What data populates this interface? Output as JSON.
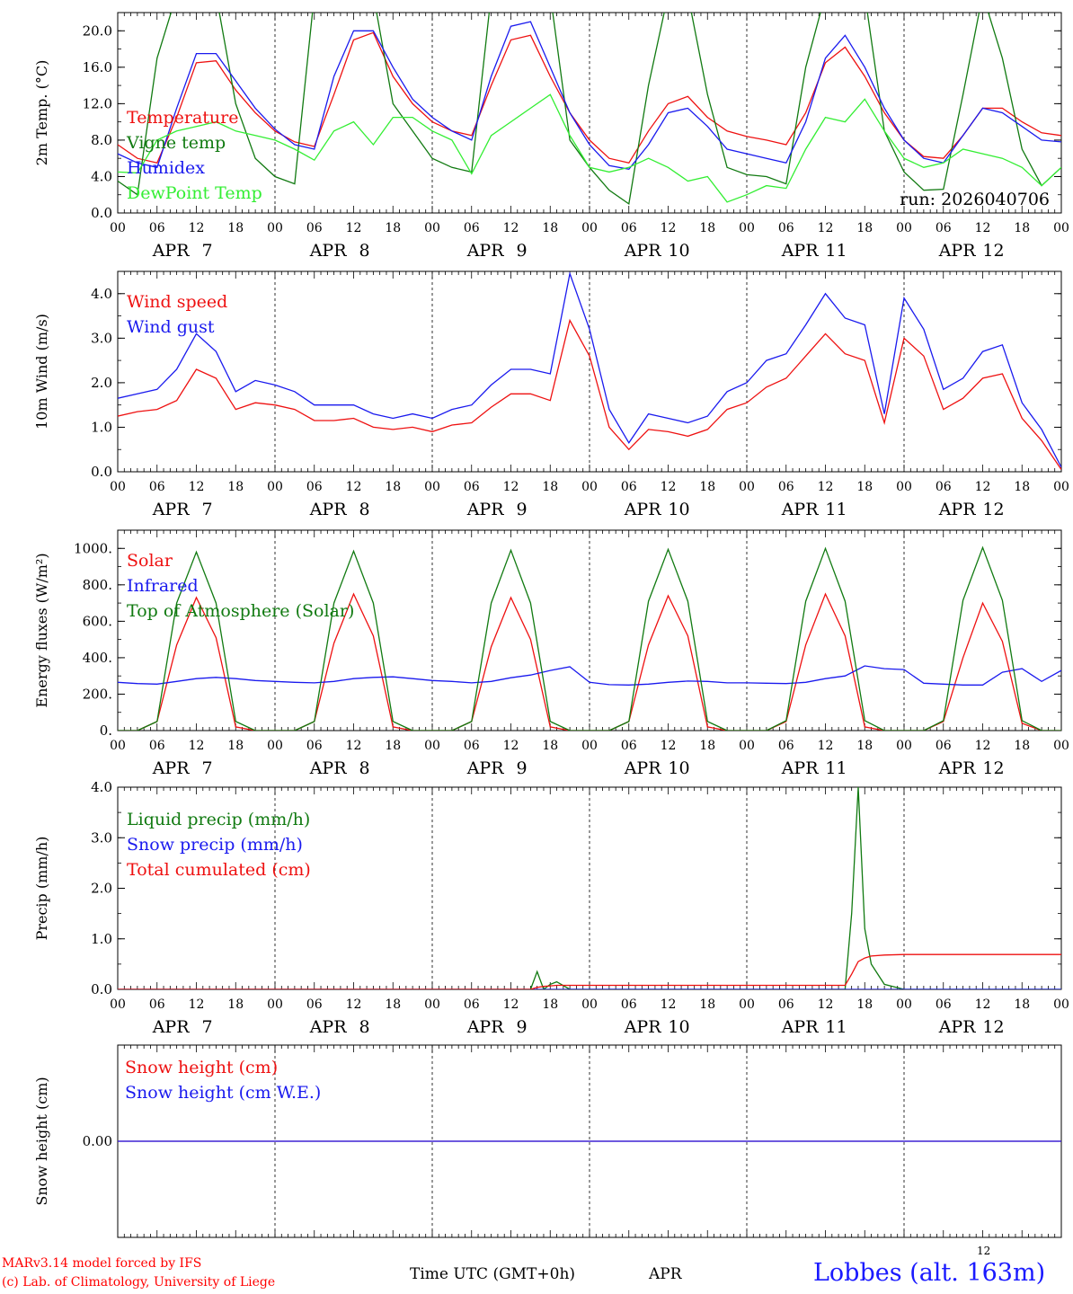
{
  "run_label": "run: 2026040706",
  "time_axis": {
    "hours_per_day": 24,
    "hour_ticks": [
      "00",
      "06",
      "12",
      "18"
    ],
    "final_tick": "00",
    "days": [
      {
        "month": "APR",
        "day": "7"
      },
      {
        "month": "APR",
        "day": "8"
      },
      {
        "month": "APR",
        "day": "9"
      },
      {
        "month": "APR",
        "day": "10"
      },
      {
        "month": "APR",
        "day": "11"
      },
      {
        "month": "APR",
        "day": "12"
      }
    ]
  },
  "footer": {
    "model": "MARv3.14 model forced by IFS",
    "credit": "(c) Lab. of Climatology, University of Liege",
    "time_label": "Time UTC (GMT+0h)",
    "month": "APR",
    "day": "12",
    "station": "Lobbes (alt. 163m)"
  },
  "colors": {
    "red": "#ee1111",
    "green": "#117a11",
    "blue": "#1a1aee",
    "lightgreen": "#33ee33"
  },
  "chart_data": [
    {
      "type": "line",
      "id": "temperature",
      "ylabel": "2m Temp. (°C)",
      "ylim": [
        0,
        22
      ],
      "yticks": [
        0,
        4,
        8,
        12,
        16,
        20
      ],
      "ytick_labels": [
        "0.0",
        "4.0",
        "8.0",
        "12.0",
        "16.0",
        "20.0"
      ],
      "x_hours": [
        0,
        3,
        6,
        9,
        12,
        15,
        18,
        21,
        24,
        27,
        30,
        33,
        36,
        39,
        42,
        45,
        48,
        51,
        54,
        57,
        60,
        63,
        66,
        69,
        72,
        75,
        78,
        81,
        84,
        87,
        90,
        93,
        96,
        99,
        102,
        105,
        108,
        111,
        114,
        117,
        120,
        123,
        126,
        129,
        132,
        135,
        138,
        141,
        144
      ],
      "series": [
        {
          "name": "Temperature",
          "color": "red",
          "values": [
            7.5,
            6.0,
            5.5,
            10.5,
            16.5,
            16.7,
            13.5,
            11.0,
            9.0,
            7.8,
            7.3,
            13.0,
            19.0,
            19.8,
            15.0,
            12.0,
            10.0,
            9.0,
            8.5,
            14.0,
            19.0,
            19.5,
            15.0,
            11.0,
            8.0,
            6.0,
            5.5,
            9.0,
            12.0,
            12.8,
            10.5,
            9.0,
            8.4,
            8.0,
            7.5,
            11.0,
            16.5,
            18.2,
            15.0,
            11.0,
            8.0,
            6.2,
            6.0,
            8.5,
            11.5,
            11.5,
            10.0,
            8.8,
            8.5
          ]
        },
        {
          "name": "Vigne temp",
          "color": "green",
          "values": [
            3.5,
            2.0,
            17.0,
            24.0,
            24.0,
            24.0,
            12.0,
            6.0,
            4.0,
            3.2,
            24.0,
            24.0,
            24.0,
            24.0,
            12.0,
            9.0,
            6.0,
            5.0,
            4.5,
            24.0,
            24.0,
            24.0,
            24.0,
            8.0,
            5.0,
            2.5,
            1.0,
            14.0,
            24.0,
            24.0,
            13.0,
            5.0,
            4.2,
            4.0,
            3.2,
            16.0,
            24.0,
            24.0,
            24.0,
            9.0,
            4.5,
            2.5,
            2.6,
            13.0,
            24.0,
            17.0,
            7.0,
            3.0,
            5.0
          ]
        },
        {
          "name": "Humidex",
          "color": "blue",
          "values": [
            6.5,
            5.5,
            5.0,
            11.5,
            17.5,
            17.5,
            14.5,
            11.5,
            9.2,
            7.5,
            7.0,
            15.0,
            20.0,
            20.0,
            16.0,
            12.5,
            10.5,
            9.0,
            8.0,
            15.0,
            20.5,
            21.0,
            16.0,
            11.0,
            7.5,
            5.2,
            4.8,
            7.5,
            11.0,
            11.5,
            9.5,
            7.0,
            6.5,
            6.0,
            5.5,
            10.0,
            17.0,
            19.5,
            16.0,
            11.5,
            8.0,
            6.0,
            5.5,
            8.5,
            11.5,
            11.0,
            9.5,
            8.0,
            7.8
          ]
        },
        {
          "name": "DewPoint Temp",
          "color": "lightgreen",
          "values": [
            4.5,
            4.4,
            8.0,
            9.0,
            9.5,
            10.0,
            9.0,
            8.5,
            8.0,
            7.0,
            5.8,
            9.0,
            10.0,
            7.5,
            10.5,
            10.5,
            9.0,
            8.0,
            4.3,
            8.5,
            10.0,
            11.5,
            13.0,
            8.5,
            5.0,
            4.5,
            5.0,
            6.0,
            5.0,
            3.5,
            4.0,
            1.2,
            2.0,
            3.0,
            2.7,
            7.0,
            10.5,
            10.0,
            12.5,
            9.0,
            6.0,
            5.0,
            5.5,
            7.0,
            6.5,
            6.0,
            5.0,
            3.0,
            5.0
          ]
        }
      ]
    },
    {
      "type": "line",
      "id": "wind",
      "ylabel": "10m Wind (m/s)",
      "ylim": [
        0,
        4.5
      ],
      "yticks": [
        0,
        1,
        2,
        3,
        4
      ],
      "ytick_labels": [
        "0.0",
        "1.0",
        "2.0",
        "3.0",
        "4.0"
      ],
      "x_hours": [
        0,
        3,
        6,
        9,
        12,
        15,
        18,
        21,
        24,
        27,
        30,
        33,
        36,
        39,
        42,
        45,
        48,
        51,
        54,
        57,
        60,
        63,
        66,
        69,
        72,
        75,
        78,
        81,
        84,
        87,
        90,
        93,
        96,
        99,
        102,
        105,
        108,
        111,
        114,
        117,
        120,
        123,
        126,
        129,
        132,
        135,
        138,
        141,
        144
      ],
      "series": [
        {
          "name": "Wind speed",
          "color": "red",
          "values": [
            1.25,
            1.35,
            1.4,
            1.6,
            2.3,
            2.1,
            1.4,
            1.55,
            1.5,
            1.4,
            1.15,
            1.15,
            1.2,
            1.0,
            0.95,
            1.0,
            0.9,
            1.05,
            1.1,
            1.45,
            1.75,
            1.75,
            1.6,
            3.4,
            2.6,
            1.0,
            0.5,
            0.95,
            0.9,
            0.8,
            0.95,
            1.4,
            1.55,
            1.9,
            2.1,
            2.6,
            3.1,
            2.65,
            2.5,
            1.1,
            3.0,
            2.6,
            1.4,
            1.65,
            2.1,
            2.2,
            1.2,
            0.7,
            0.05
          ]
        },
        {
          "name": "Wind gust",
          "color": "blue",
          "values": [
            1.65,
            1.75,
            1.85,
            2.3,
            3.1,
            2.7,
            1.8,
            2.05,
            1.95,
            1.8,
            1.5,
            1.5,
            1.5,
            1.3,
            1.2,
            1.3,
            1.2,
            1.4,
            1.5,
            1.95,
            2.3,
            2.3,
            2.2,
            4.45,
            3.2,
            1.4,
            0.65,
            1.3,
            1.2,
            1.1,
            1.25,
            1.8,
            2.0,
            2.5,
            2.65,
            3.3,
            4.0,
            3.45,
            3.3,
            1.3,
            3.9,
            3.2,
            1.85,
            2.1,
            2.7,
            2.85,
            1.55,
            0.95,
            0.1
          ]
        }
      ]
    },
    {
      "type": "line",
      "id": "energy",
      "ylabel": "Energy fluxes (W/m²)",
      "ylim": [
        0,
        1100
      ],
      "yticks": [
        0,
        200,
        400,
        600,
        800,
        1000
      ],
      "ytick_labels": [
        "0.",
        "200.",
        "400.",
        "600.",
        "800.",
        "1000."
      ],
      "x_hours": [
        0,
        3,
        6,
        9,
        12,
        15,
        18,
        21,
        24,
        27,
        30,
        33,
        36,
        39,
        42,
        45,
        48,
        51,
        54,
        57,
        60,
        63,
        66,
        69,
        72,
        75,
        78,
        81,
        84,
        87,
        90,
        93,
        96,
        99,
        102,
        105,
        108,
        111,
        114,
        117,
        120,
        123,
        126,
        129,
        132,
        135,
        138,
        141,
        144
      ],
      "series": [
        {
          "name": "Solar",
          "color": "red",
          "values": [
            0,
            0,
            50,
            470,
            730,
            510,
            20,
            0,
            0,
            0,
            50,
            480,
            750,
            520,
            20,
            0,
            0,
            0,
            50,
            460,
            730,
            500,
            20,
            0,
            0,
            0,
            50,
            470,
            740,
            520,
            20,
            0,
            0,
            0,
            50,
            470,
            750,
            520,
            20,
            0,
            0,
            0,
            50,
            400,
            700,
            490,
            40,
            0,
            0
          ]
        },
        {
          "name": "Infrared",
          "color": "blue",
          "values": [
            265,
            258,
            255,
            270,
            285,
            292,
            285,
            275,
            270,
            265,
            262,
            270,
            285,
            292,
            295,
            285,
            275,
            270,
            262,
            270,
            290,
            305,
            330,
            350,
            265,
            252,
            250,
            255,
            265,
            272,
            270,
            262,
            262,
            260,
            258,
            265,
            285,
            300,
            355,
            340,
            335,
            260,
            255,
            250,
            250,
            320,
            340,
            270,
            330
          ]
        },
        {
          "name": "Top of Atmosphere (Solar)",
          "color": "green",
          "values": [
            0,
            0,
            50,
            700,
            980,
            700,
            50,
            0,
            0,
            0,
            50,
            700,
            985,
            700,
            50,
            0,
            0,
            0,
            50,
            700,
            990,
            700,
            50,
            0,
            0,
            0,
            50,
            710,
            995,
            710,
            50,
            0,
            0,
            0,
            55,
            710,
            1000,
            710,
            55,
            0,
            0,
            0,
            55,
            715,
            1005,
            715,
            55,
            0,
            0
          ]
        }
      ]
    },
    {
      "type": "line",
      "id": "precip",
      "ylabel": "Precip (mm/h)",
      "ylim": [
        0,
        4
      ],
      "yticks": [
        0,
        1,
        2,
        3,
        4
      ],
      "ytick_labels": [
        "0.0",
        "1.0",
        "2.0",
        "3.0",
        "4.0"
      ],
      "x_hours": [
        0,
        3,
        6,
        9,
        12,
        15,
        18,
        21,
        24,
        27,
        30,
        33,
        36,
        39,
        42,
        45,
        48,
        51,
        54,
        57,
        60,
        63,
        64,
        65,
        66,
        67,
        69,
        72,
        75,
        78,
        81,
        84,
        87,
        90,
        93,
        96,
        99,
        102,
        105,
        108,
        111,
        112,
        113,
        114,
        115,
        117,
        120,
        123,
        126,
        129,
        132,
        135,
        138,
        141,
        144
      ],
      "series": [
        {
          "name": "Liquid precip (mm/h)",
          "color": "green",
          "values": [
            0,
            0,
            0,
            0,
            0,
            0,
            0,
            0,
            0,
            0,
            0,
            0,
            0,
            0,
            0,
            0,
            0,
            0,
            0,
            0,
            0,
            0,
            0.35,
            0,
            0.1,
            0.15,
            0,
            0,
            0,
            0,
            0,
            0,
            0,
            0,
            0,
            0,
            0,
            0,
            0,
            0,
            0,
            1.5,
            4.0,
            1.2,
            0.5,
            0.1,
            0,
            0,
            0,
            0,
            0,
            0,
            0,
            0,
            0
          ]
        },
        {
          "name": "Snow precip (mm/h)",
          "color": "blue",
          "values": [
            0,
            0,
            0,
            0,
            0,
            0,
            0,
            0,
            0,
            0,
            0,
            0,
            0,
            0,
            0,
            0,
            0,
            0,
            0,
            0,
            0,
            0,
            0,
            0,
            0,
            0,
            0,
            0,
            0,
            0,
            0,
            0,
            0,
            0,
            0,
            0,
            0,
            0,
            0,
            0,
            0,
            0,
            0,
            0,
            0,
            0,
            0,
            0,
            0,
            0,
            0,
            0,
            0,
            0,
            0
          ]
        },
        {
          "name": "Total cumulated (cm)",
          "color": "red",
          "values": [
            0,
            0,
            0,
            0,
            0,
            0,
            0,
            0,
            0,
            0,
            0,
            0,
            0,
            0,
            0,
            0,
            0,
            0,
            0,
            0,
            0,
            0,
            0.04,
            0.06,
            0.07,
            0.08,
            0.08,
            0.08,
            0.08,
            0.08,
            0.08,
            0.08,
            0.08,
            0.08,
            0.08,
            0.08,
            0.08,
            0.08,
            0.08,
            0.08,
            0.08,
            0.3,
            0.55,
            0.62,
            0.66,
            0.68,
            0.69,
            0.69,
            0.69,
            0.69,
            0.69,
            0.69,
            0.69,
            0.69,
            0.69
          ]
        }
      ]
    },
    {
      "type": "line",
      "id": "snow",
      "ylabel": "Snow height (cm)",
      "ylim": [
        -1,
        1
      ],
      "yticks": [
        0
      ],
      "ytick_labels": [
        "0.00"
      ],
      "x_hours": [
        0,
        144
      ],
      "series": [
        {
          "name": "Snow height (cm)",
          "color": "red",
          "values": [
            0,
            0
          ]
        },
        {
          "name": "Snow height (cm W.E.)",
          "color": "blue",
          "values": [
            0,
            0
          ]
        }
      ]
    }
  ]
}
